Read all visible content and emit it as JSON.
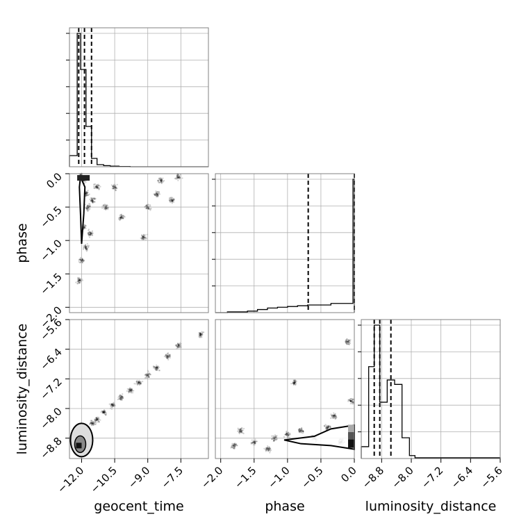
{
  "chart_data": {
    "type": "scatter",
    "title": "",
    "grid": true,
    "parameters": [
      "geocent_time",
      "phase",
      "luminosity_distance"
    ],
    "axis_labels": {
      "geocent_time": "geocent_time",
      "phase": "phase",
      "luminosity_distance": "luminosity_distance"
    },
    "ticks": {
      "geocent_time": [
        "−12.0",
        "−10.5",
        "−9.0",
        "−7.5"
      ],
      "phase": [
        "−2.0",
        "−1.5",
        "−1.0",
        "−0.5",
        "0.0"
      ],
      "luminosity_distance": [
        "−5.6",
        "−6.4",
        "−7.2",
        "−8.0",
        "−8.8"
      ],
      "luminosity_distance_bottom": [
        "−8.8",
        "−8.0",
        "−7.2",
        "−6.4",
        "−5.6"
      ]
    },
    "ranges": {
      "geocent_time": [
        -12.55,
        -6.25
      ],
      "phase": [
        -2.08,
        0.0
      ],
      "luminosity_distance": [
        -9.35,
        -5.6
      ]
    },
    "diagonal": [
      {
        "parameter": "geocent_time",
        "bin_edges": [
          -12.55,
          -12.2,
          -12.05,
          -11.8,
          -11.55,
          -11.3,
          -11.0,
          -10.7,
          -10.3,
          -9.8,
          -6.25
        ],
        "counts": [
          0.08,
          0.96,
          0.7,
          0.29,
          0.06,
          0.015,
          0.008,
          0.004,
          0.002,
          0.0
        ],
        "quantiles": [
          -12.13,
          -11.87,
          -11.55
        ]
      },
      {
        "parameter": "phase",
        "bin_edges": [
          -2.08,
          -1.9,
          -1.6,
          -1.45,
          -1.3,
          -1.15,
          -1.0,
          -0.85,
          -0.7,
          -0.35,
          -0.02,
          0.0
        ],
        "counts": [
          0.0,
          0.005,
          0.01,
          0.02,
          0.03,
          0.035,
          0.04,
          0.045,
          0.05,
          0.06,
          0.87
        ],
        "quantiles": [
          -0.69,
          0.0
        ]
      },
      {
        "parameter": "luminosity_distance",
        "bin_edges": [
          -9.35,
          -9.15,
          -9.0,
          -8.85,
          -8.65,
          -8.45,
          -8.25,
          -8.05,
          -7.9,
          -5.6
        ],
        "counts": [
          0.08,
          0.62,
          0.9,
          0.38,
          0.53,
          0.5,
          0.14,
          0.02,
          0.005
        ],
        "quantiles": [
          -9.0,
          -8.85,
          -8.55
        ]
      }
    ],
    "scatter_panels": [
      {
        "x": "geocent_time",
        "y": "phase",
        "points": [
          {
            "x": -12.0,
            "y": 0.0
          },
          {
            "x": -11.9,
            "y": -0.1
          },
          {
            "x": -11.8,
            "y": -0.3
          },
          {
            "x": -11.7,
            "y": -0.5
          },
          {
            "x": -11.9,
            "y": -0.8
          },
          {
            "x": -11.8,
            "y": -1.1
          },
          {
            "x": -12.0,
            "y": -1.3
          },
          {
            "x": -12.1,
            "y": -1.6
          },
          {
            "x": -11.6,
            "y": -0.9
          },
          {
            "x": -11.5,
            "y": -0.4
          },
          {
            "x": -11.3,
            "y": -0.2
          },
          {
            "x": -10.9,
            "y": -0.5
          },
          {
            "x": -10.5,
            "y": -0.2
          },
          {
            "x": -9.0,
            "y": -0.5
          },
          {
            "x": -8.6,
            "y": -0.3
          },
          {
            "x": -8.4,
            "y": -0.1
          },
          {
            "x": -7.9,
            "y": -0.4
          },
          {
            "x": -9.2,
            "y": -0.95
          },
          {
            "x": -7.6,
            "y": -0.05
          },
          {
            "x": -10.2,
            "y": -0.65
          }
        ]
      },
      {
        "x": "geocent_time",
        "y": "luminosity_distance",
        "points": [
          {
            "x": -12.1,
            "y": -8.9
          },
          {
            "x": -11.9,
            "y": -8.8
          },
          {
            "x": -11.7,
            "y": -8.6
          },
          {
            "x": -11.5,
            "y": -8.4
          },
          {
            "x": -11.3,
            "y": -8.3
          },
          {
            "x": -11.0,
            "y": -8.1
          },
          {
            "x": -10.6,
            "y": -7.9
          },
          {
            "x": -10.2,
            "y": -7.7
          },
          {
            "x": -9.8,
            "y": -7.5
          },
          {
            "x": -9.4,
            "y": -7.3
          },
          {
            "x": -9.0,
            "y": -7.1
          },
          {
            "x": -8.6,
            "y": -6.9
          },
          {
            "x": -8.1,
            "y": -6.6
          },
          {
            "x": -7.6,
            "y": -6.3
          },
          {
            "x": -6.6,
            "y": -6.0
          },
          {
            "x": -12.2,
            "y": -9.1
          },
          {
            "x": -11.8,
            "y": -9.0
          },
          {
            "x": -12.3,
            "y": -8.7
          }
        ]
      },
      {
        "x": "phase",
        "y": "luminosity_distance",
        "points": [
          {
            "x": -1.8,
            "y": -9.0
          },
          {
            "x": -1.5,
            "y": -8.9
          },
          {
            "x": -1.2,
            "y": -8.8
          },
          {
            "x": -1.0,
            "y": -8.7
          },
          {
            "x": -0.8,
            "y": -8.6
          },
          {
            "x": -0.6,
            "y": -8.8
          },
          {
            "x": -0.4,
            "y": -8.5
          },
          {
            "x": -0.2,
            "y": -8.9
          },
          {
            "x": -0.05,
            "y": -8.7
          },
          {
            "x": -0.9,
            "y": -7.3
          },
          {
            "x": -0.1,
            "y": -6.2
          },
          {
            "x": -0.05,
            "y": -7.8
          },
          {
            "x": -1.7,
            "y": -8.6
          },
          {
            "x": -0.3,
            "y": -8.2
          },
          {
            "x": -1.3,
            "y": -9.1
          }
        ]
      }
    ]
  }
}
